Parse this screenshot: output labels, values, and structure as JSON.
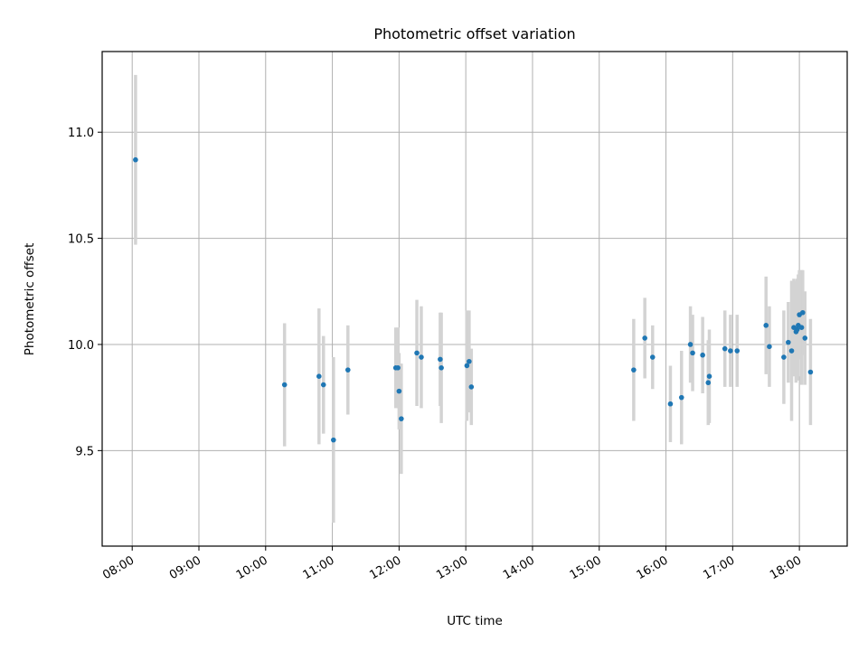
{
  "chart_data": {
    "type": "scatter",
    "title": "Photometric offset variation",
    "xlabel": "UTC time",
    "ylabel": "Photometric offset",
    "x_ticks": [
      "08:00",
      "09:00",
      "10:00",
      "11:00",
      "12:00",
      "13:00",
      "14:00",
      "15:00",
      "16:00",
      "17:00",
      "18:00"
    ],
    "y_ticks": [
      "9.5",
      "10.0",
      "10.5",
      "11.0"
    ],
    "xlim": [
      "07:33",
      "18:43"
    ],
    "ylim": [
      9.05,
      11.38
    ],
    "grid": true,
    "colors": {
      "points": "#1f77b4",
      "error_bars": "#d3d3d3"
    },
    "series": [
      {
        "x": [
          "08:03",
          "10:17",
          "10:48",
          "10:52",
          "11:01",
          "11:14",
          "11:57",
          "11:59",
          "12:00",
          "12:02",
          "12:16",
          "12:20",
          "12:37",
          "12:38",
          "13:01",
          "13:03",
          "13:05",
          "15:31",
          "15:41",
          "15:48",
          "16:04",
          "16:14",
          "16:22",
          "16:24",
          "16:33",
          "16:38",
          "16:39",
          "16:53",
          "16:58",
          "17:04",
          "17:30",
          "17:33",
          "17:46",
          "17:50",
          "17:53",
          "17:55",
          "17:57",
          "17:58",
          "17:59",
          "18:00",
          "18:02",
          "18:03",
          "18:05",
          "18:10"
        ],
        "y": [
          10.87,
          9.81,
          9.85,
          9.81,
          9.55,
          9.88,
          9.89,
          9.89,
          9.78,
          9.65,
          9.96,
          9.94,
          9.93,
          9.89,
          9.9,
          9.92,
          9.8,
          9.88,
          10.03,
          9.94,
          9.72,
          9.75,
          10.0,
          9.96,
          9.95,
          9.82,
          9.85,
          9.98,
          9.97,
          9.97,
          10.09,
          9.99,
          9.94,
          10.01,
          9.97,
          10.08,
          10.06,
          10.07,
          10.09,
          10.14,
          10.08,
          10.15,
          10.03,
          9.87
        ],
        "yerr": [
          0.4,
          0.29,
          0.32,
          0.23,
          0.39,
          0.21,
          0.19,
          0.19,
          0.18,
          0.26,
          0.25,
          0.24,
          0.22,
          0.26,
          0.26,
          0.24,
          0.18,
          0.24,
          0.19,
          0.15,
          0.18,
          0.22,
          0.18,
          0.18,
          0.18,
          0.2,
          0.22,
          0.18,
          0.17,
          0.17,
          0.23,
          0.19,
          0.22,
          0.19,
          0.33,
          0.23,
          0.24,
          0.24,
          0.24,
          0.21,
          0.27,
          0.2,
          0.22,
          0.25
        ]
      }
    ]
  }
}
